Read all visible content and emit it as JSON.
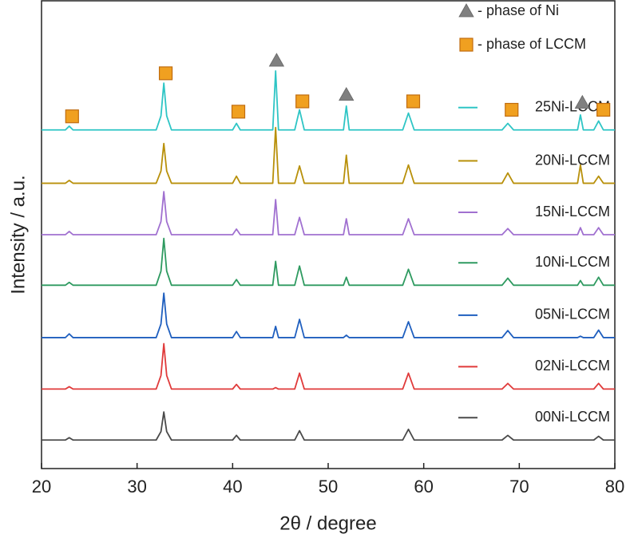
{
  "chart_data": {
    "type": "line",
    "x_label": "2θ / degree",
    "y_label": "Intensity / a.u.",
    "xlim": [
      20,
      80
    ],
    "xticks": [
      20,
      30,
      40,
      50,
      60,
      70,
      80
    ],
    "ylim": [
      0,
      100
    ],
    "x": [
      20,
      22.5,
      22.9,
      23.3,
      32.0,
      32.5,
      32.8,
      33.1,
      33.6,
      40.0,
      40.4,
      40.8,
      44.2,
      44.5,
      44.8,
      46.5,
      47.0,
      47.5,
      51.6,
      51.9,
      52.2,
      57.8,
      58.4,
      59.0,
      68.2,
      68.8,
      69.4,
      76.1,
      76.4,
      76.7,
      77.8,
      78.3,
      78.8,
      80
    ],
    "series": [
      {
        "name": "00Ni-LCCM",
        "color": "#4a4a4a",
        "values": [
          6.1,
          6.1,
          6.6,
          6.1,
          6.1,
          7.9,
          12.1,
          7.9,
          6.1,
          6.1,
          7.1,
          6.1,
          6.1,
          6.1,
          6.1,
          6.1,
          8.1,
          6.1,
          6.1,
          6.1,
          6.1,
          6.1,
          8.4,
          6.1,
          6.1,
          7.1,
          6.1,
          6.1,
          6.1,
          6.1,
          6.1,
          6.9,
          6.1,
          6.1
        ]
      },
      {
        "name": "02Ni-LCCM",
        "color": "#e03a3a",
        "values": [
          17,
          17,
          17.5,
          17,
          17,
          19.9,
          26.7,
          19.9,
          17,
          17,
          18,
          17,
          17,
          17.3,
          17,
          17,
          20.4,
          17,
          17,
          17,
          17,
          17,
          20.4,
          17,
          17,
          18.2,
          17,
          17,
          17,
          17,
          17,
          18.2,
          17,
          17
        ]
      },
      {
        "name": "05Ni-LCCM",
        "color": "#1f5fbf",
        "values": [
          28,
          28,
          28.8,
          28,
          28,
          30.9,
          37.5,
          30.9,
          28,
          28,
          29.3,
          28,
          28,
          30.4,
          28,
          28,
          31.9,
          28,
          28,
          28.5,
          28,
          28,
          31.4,
          28,
          28,
          29.5,
          28,
          28,
          28.3,
          28,
          28,
          29.6,
          28,
          28
        ]
      },
      {
        "name": "10Ni-LCCM",
        "color": "#2e9a60",
        "values": [
          39.2,
          39.2,
          39.8,
          39.2,
          39.2,
          42.2,
          49.2,
          42.2,
          39.2,
          39.2,
          40.4,
          39.2,
          39.2,
          44.3,
          39.2,
          39.2,
          43.3,
          39.2,
          39.2,
          40.9,
          39.2,
          39.2,
          42.6,
          39.2,
          39.2,
          40.7,
          39.2,
          39.2,
          40.2,
          39.2,
          39.2,
          40.9,
          39.2,
          39.2
        ]
      },
      {
        "name": "15Ni-LCCM",
        "color": "#a070d0",
        "values": [
          50,
          50,
          50.7,
          50,
          50,
          52.8,
          59.2,
          52.8,
          50,
          50,
          51.2,
          50,
          50,
          57.5,
          50,
          50,
          53.7,
          50,
          50,
          53.4,
          50,
          50,
          53.4,
          50,
          50,
          51.3,
          50,
          50,
          51.5,
          50,
          50,
          51.5,
          50,
          50
        ]
      },
      {
        "name": "20Ni-LCCM",
        "color": "#b8900a",
        "values": [
          61,
          61,
          61.6,
          61,
          61,
          63.6,
          69.5,
          63.6,
          61,
          61,
          62.5,
          61,
          61,
          72.9,
          61,
          61,
          64.7,
          61,
          61,
          67,
          61,
          61,
          64.9,
          61,
          61,
          63.2,
          61,
          61,
          64.9,
          61,
          61,
          62.5,
          61,
          61
        ]
      },
      {
        "name": "25Ni-LCCM",
        "color": "#2ec5c5",
        "values": [
          72.4,
          72.4,
          73.2,
          72.4,
          72.4,
          75.4,
          82.4,
          75.4,
          72.4,
          72.4,
          73.8,
          72.4,
          72.4,
          85,
          72.4,
          72.4,
          76.7,
          72.4,
          72.4,
          77.5,
          72.4,
          72.4,
          76,
          72.4,
          72.4,
          73.8,
          72.4,
          72.4,
          75.6,
          72.4,
          72.4,
          74.3,
          72.4,
          72.4
        ]
      }
    ],
    "markers": [
      {
        "name": "- phase of Ni",
        "symbol": "triangle",
        "color": "#808080",
        "x": [
          44.6,
          51.9,
          76.6
        ],
        "y": [
          87.2,
          79.9,
          78.2
        ]
      },
      {
        "name": "- phase of LCCM",
        "symbol": "square",
        "color": "#f0a020",
        "x": [
          23.2,
          33.0,
          40.6,
          47.3,
          58.9,
          69.2,
          78.8
        ],
        "y": [
          75.3,
          84.5,
          76.3,
          78.5,
          78.5,
          76.7,
          76.7
        ]
      }
    ]
  }
}
